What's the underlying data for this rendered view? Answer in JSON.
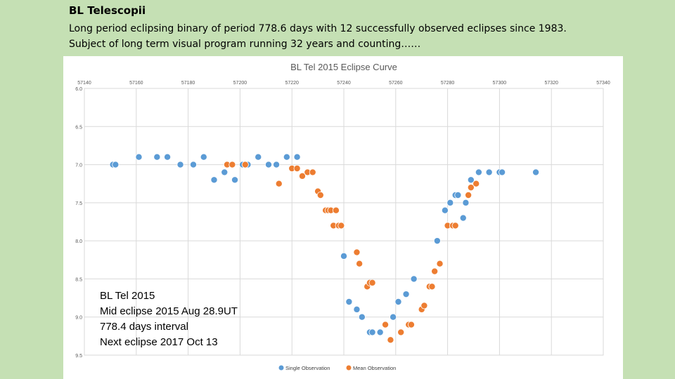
{
  "slide": {
    "title": "BL Telescopii",
    "subtitle_line1": "Long period eclipsing binary of period 778.6 days with 12 successfully observed eclipses since 1983.",
    "subtitle_line2": "Subject of long term visual program running 32 years and counting……"
  },
  "annotation": {
    "line1": "BL Tel 2015",
    "line2": "Mid eclipse 2015 Aug 28.9UT",
    "line3": "778.4 days interval",
    "line4": "Next eclipse 2017 Oct 13"
  },
  "colors": {
    "background": "#c5e0b4",
    "single": "#5b9bd5",
    "mean": "#ed7d31",
    "grid": "#d9d9d9",
    "text": "#595959"
  },
  "chart_data": {
    "type": "scatter",
    "title": "BL Tel 2015 Eclipse Curve",
    "xlabel": "",
    "ylabel": "",
    "xlim": [
      57140,
      57340
    ],
    "ylim": [
      6.0,
      9.5
    ],
    "y_inverted": true,
    "x_ticks": [
      "57140",
      "57160",
      "57180",
      "57200",
      "57220",
      "57240",
      "57260",
      "57280",
      "57300",
      "57320",
      "57340"
    ],
    "y_ticks": [
      "6.0",
      "6.5",
      "7.0",
      "7.5",
      "8.0",
      "8.5",
      "9.0",
      "9.5"
    ],
    "legend_position": "bottom",
    "series": [
      {
        "name": "Single Observation",
        "points": [
          [
            57151,
            7.0
          ],
          [
            57152,
            7.0
          ],
          [
            57161,
            6.9
          ],
          [
            57168,
            6.9
          ],
          [
            57172,
            6.9
          ],
          [
            57177,
            7.0
          ],
          [
            57182,
            7.0
          ],
          [
            57186,
            6.9
          ],
          [
            57190,
            7.2
          ],
          [
            57194,
            7.1
          ],
          [
            57198,
            7.2
          ],
          [
            57201,
            7.0
          ],
          [
            57203,
            7.0
          ],
          [
            57207,
            6.9
          ],
          [
            57211,
            7.0
          ],
          [
            57214,
            7.0
          ],
          [
            57218,
            6.9
          ],
          [
            57222,
            6.9
          ],
          [
            57236,
            7.8
          ],
          [
            57240,
            8.2
          ],
          [
            57242,
            8.8
          ],
          [
            57245,
            8.9
          ],
          [
            57247,
            9.0
          ],
          [
            57250,
            9.2
          ],
          [
            57251,
            9.2
          ],
          [
            57254,
            9.2
          ],
          [
            57256,
            9.1
          ],
          [
            57259,
            9.0
          ],
          [
            57261,
            8.8
          ],
          [
            57264,
            8.7
          ],
          [
            57267,
            8.5
          ],
          [
            57276,
            8.0
          ],
          [
            57279,
            7.6
          ],
          [
            57281,
            7.5
          ],
          [
            57283,
            7.4
          ],
          [
            57284,
            7.4
          ],
          [
            57286,
            7.7
          ],
          [
            57287,
            7.5
          ],
          [
            57289,
            7.2
          ],
          [
            57292,
            7.1
          ],
          [
            57296,
            7.1
          ],
          [
            57300,
            7.1
          ],
          [
            57301,
            7.1
          ],
          [
            57314,
            7.1
          ]
        ]
      },
      {
        "name": "Mean Observation",
        "points": [
          [
            57195,
            7.0
          ],
          [
            57197,
            7.0
          ],
          [
            57202,
            7.0
          ],
          [
            57215,
            7.25
          ],
          [
            57220,
            7.05
          ],
          [
            57222,
            7.05
          ],
          [
            57224,
            7.15
          ],
          [
            57226,
            7.1
          ],
          [
            57228,
            7.1
          ],
          [
            57230,
            7.35
          ],
          [
            57231,
            7.4
          ],
          [
            57233,
            7.6
          ],
          [
            57234,
            7.6
          ],
          [
            57235,
            7.6
          ],
          [
            57236,
            7.8
          ],
          [
            57237,
            7.6
          ],
          [
            57238,
            7.8
          ],
          [
            57239,
            7.8
          ],
          [
            57245,
            8.15
          ],
          [
            57246,
            8.3
          ],
          [
            57249,
            8.6
          ],
          [
            57250,
            8.55
          ],
          [
            57251,
            8.55
          ],
          [
            57256,
            9.1
          ],
          [
            57258,
            9.3
          ],
          [
            57262,
            9.2
          ],
          [
            57265,
            9.1
          ],
          [
            57266,
            9.1
          ],
          [
            57270,
            8.9
          ],
          [
            57271,
            8.85
          ],
          [
            57273,
            8.6
          ],
          [
            57274,
            8.6
          ],
          [
            57275,
            8.4
          ],
          [
            57277,
            8.3
          ],
          [
            57280,
            7.8
          ],
          [
            57282,
            7.8
          ],
          [
            57283,
            7.8
          ],
          [
            57288,
            7.4
          ],
          [
            57289,
            7.3
          ],
          [
            57291,
            7.25
          ]
        ]
      }
    ]
  }
}
